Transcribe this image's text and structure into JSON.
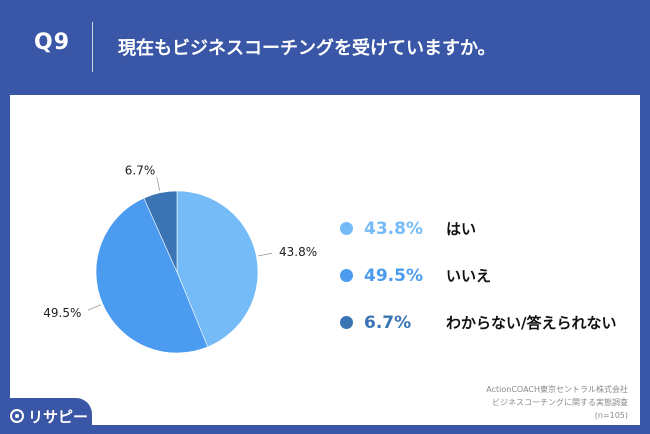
{
  "header": {
    "question_number": "Q9",
    "question_text": "現在もビジネスコーチングを受けていますか。"
  },
  "chart_data": {
    "type": "pie",
    "slices": [
      {
        "label": "はい",
        "value": 43.8,
        "value_label": "43.8%",
        "color": "#74bbf7"
      },
      {
        "label": "いいえ",
        "value": 49.5,
        "value_label": "49.5%",
        "color": "#4b9cf0"
      },
      {
        "label": "わからない/答えられない",
        "value": 6.7,
        "value_label": "6.7%",
        "color": "#3a74b4"
      }
    ],
    "legend_position": "right"
  },
  "source": {
    "line1": "ActionCOACH東京セントラル株式会社",
    "line2": "ビジネスコーチングに関する実態調査",
    "line3": "(n=105)"
  },
  "logo": {
    "text": "リサピー"
  }
}
